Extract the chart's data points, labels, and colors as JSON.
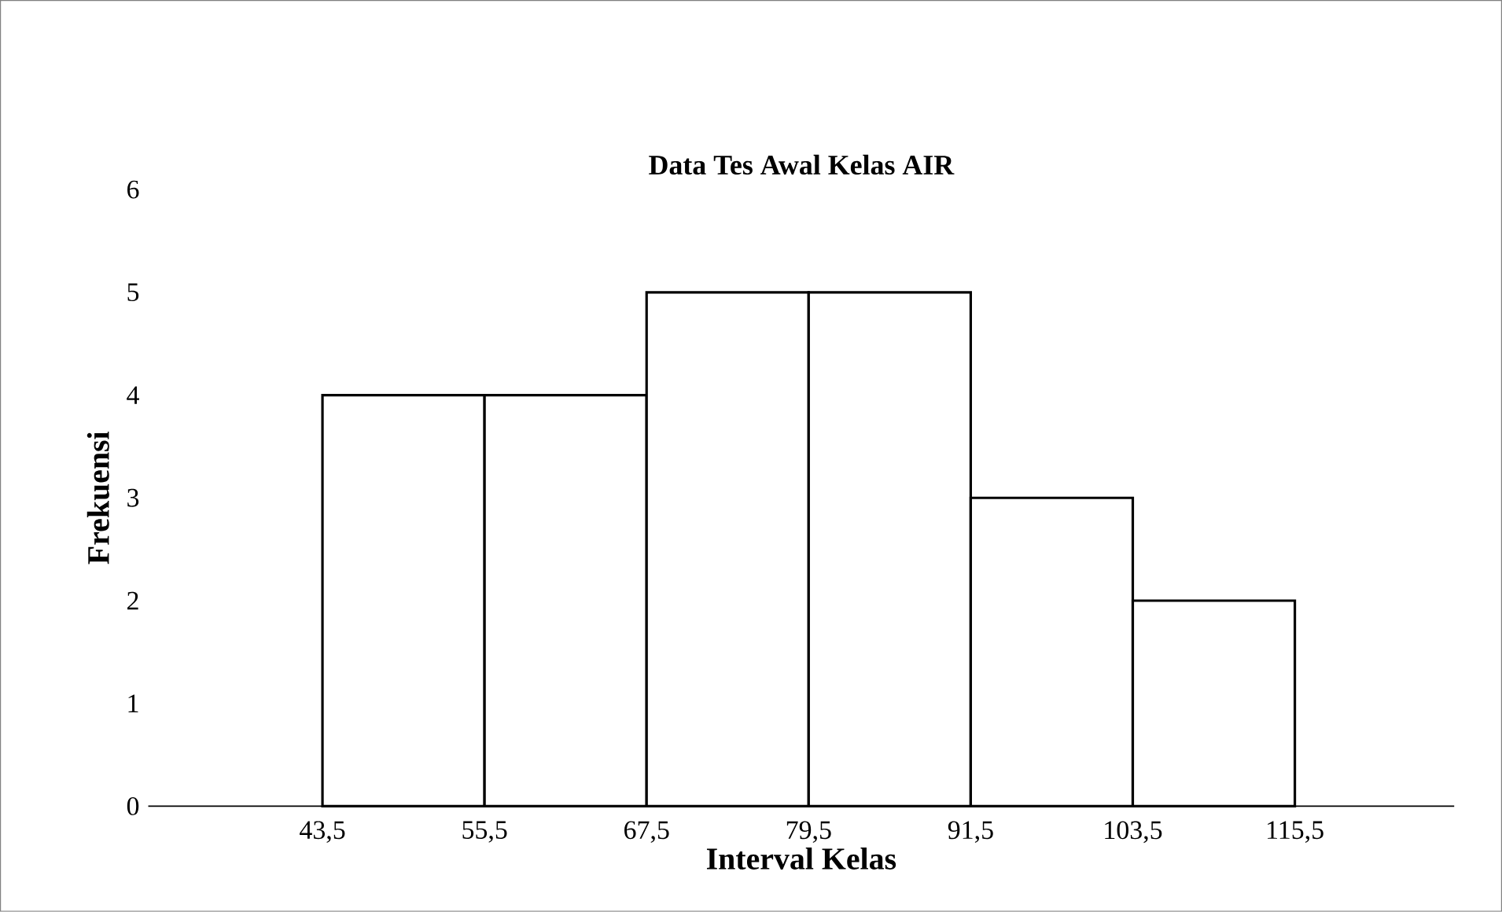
{
  "chart_data": {
    "type": "histogram",
    "title": "Data Tes Awal Kelas AIR",
    "xlabel": "Interval Kelas",
    "ylabel": "Frekuensi",
    "bins": [
      43.5,
      55.5,
      67.5,
      79.5,
      91.5,
      103.5,
      115.5
    ],
    "values": [
      4,
      4,
      5,
      5,
      3,
      2
    ],
    "color": "#ffffff",
    "xlim": [
      30.6,
      127.3
    ],
    "ylim": [
      0,
      6
    ],
    "yticks": [
      0,
      1,
      2,
      3,
      4,
      5,
      6
    ],
    "xticks": [
      {
        "value": 43.5,
        "label": "43,5"
      },
      {
        "value": 55.5,
        "label": "55,5"
      },
      {
        "value": 67.5,
        "label": "67,5"
      },
      {
        "value": 79.5,
        "label": "79,5"
      },
      {
        "value": 91.5,
        "label": "91,5"
      },
      {
        "value": 103.5,
        "label": "103,5"
      },
      {
        "value": 115.5,
        "label": "115,5"
      }
    ]
  }
}
